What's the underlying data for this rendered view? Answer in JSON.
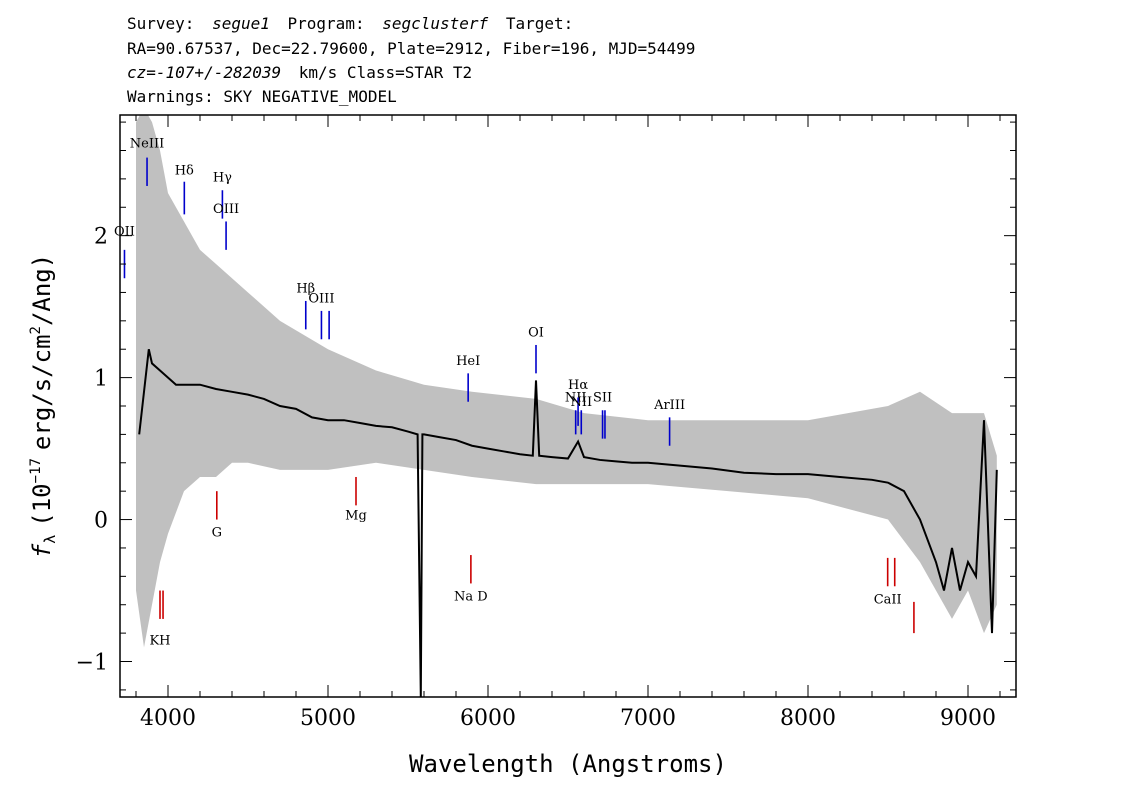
{
  "header": {
    "line1": {
      "survey_label": "Survey:",
      "survey": "segue1",
      "program_label": "Program:",
      "program": "segclusterf",
      "target_label": "Target:"
    },
    "line2": "RA=90.67537, Dec=22.79600, Plate=2912, Fiber=196, MJD=54499",
    "line3": {
      "cz": "cz=-107+/-282039",
      "rest": "km/s Class=STAR T2"
    },
    "line4": "Warnings: SKY NEGATIVE_MODEL"
  },
  "chart_data": {
    "type": "line",
    "xlabel": "Wavelength (Angstroms)",
    "ylabel_prefix": "f",
    "ylabel_sub": "λ",
    "ylabel_open": "(10",
    "ylabel_exp": "−17",
    "ylabel_rest": "erg/s/cm",
    "ylabel_exp2": "2",
    "ylabel_close": "/Ang)",
    "xlim": [
      3700,
      9300
    ],
    "ylim": [
      -1.25,
      2.85
    ],
    "x_ticks": [
      4000,
      5000,
      6000,
      7000,
      8000,
      9000
    ],
    "x_tick_labels": [
      "4000",
      "5000",
      "6000",
      "7000",
      "8000",
      "9000"
    ],
    "y_ticks": [
      -1,
      0,
      1,
      2
    ],
    "y_tick_labels": [
      "−1",
      "0",
      "1",
      "2"
    ],
    "x_minor_step": 200,
    "y_minor_step": 0.2,
    "series": [
      {
        "role": "error",
        "color": "#c0c0c0",
        "x": [
          3800,
          3850,
          3900,
          3950,
          4000,
          4100,
          4200,
          4300,
          4400,
          4500,
          4700,
          5000,
          5300,
          5600,
          5900,
          6300,
          6600,
          7000,
          7500,
          8000,
          8500,
          8700,
          8900,
          9000,
          9100,
          9180
        ],
        "lo": [
          -0.5,
          -0.9,
          -0.6,
          -0.3,
          -0.1,
          0.2,
          0.3,
          0.3,
          0.4,
          0.4,
          0.35,
          0.35,
          0.4,
          0.35,
          0.3,
          0.25,
          0.25,
          0.25,
          0.2,
          0.15,
          0.0,
          -0.3,
          -0.7,
          -0.5,
          -0.8,
          -0.6
        ],
        "hi": [
          2.8,
          2.9,
          2.8,
          2.6,
          2.3,
          2.1,
          1.9,
          1.8,
          1.7,
          1.6,
          1.4,
          1.2,
          1.05,
          0.95,
          0.9,
          0.85,
          0.75,
          0.7,
          0.7,
          0.7,
          0.8,
          0.9,
          0.75,
          0.75,
          0.75,
          0.45
        ]
      },
      {
        "role": "flux",
        "color": "#000000",
        "x": [
          3820,
          3850,
          3880,
          3900,
          3950,
          4000,
          4050,
          4100,
          4200,
          4300,
          4400,
          4500,
          4600,
          4700,
          4800,
          4900,
          5000,
          5100,
          5200,
          5300,
          5400,
          5500,
          5560,
          5580,
          5590,
          5600,
          5700,
          5800,
          5900,
          6000,
          6100,
          6200,
          6280,
          6300,
          6320,
          6400,
          6500,
          6563,
          6600,
          6700,
          6800,
          6900,
          7000,
          7200,
          7400,
          7600,
          7800,
          8000,
          8200,
          8400,
          8500,
          8600,
          8700,
          8800,
          8850,
          8900,
          8950,
          9000,
          9050,
          9100,
          9150,
          9180
        ],
        "y": [
          0.6,
          0.9,
          1.2,
          1.1,
          1.05,
          1.0,
          0.95,
          0.95,
          0.95,
          0.92,
          0.9,
          0.88,
          0.85,
          0.8,
          0.78,
          0.72,
          0.7,
          0.7,
          0.68,
          0.66,
          0.65,
          0.62,
          0.6,
          -1.25,
          0.6,
          0.6,
          0.58,
          0.56,
          0.52,
          0.5,
          0.48,
          0.46,
          0.45,
          0.98,
          0.45,
          0.44,
          0.43,
          0.55,
          0.44,
          0.42,
          0.41,
          0.4,
          0.4,
          0.38,
          0.36,
          0.33,
          0.32,
          0.32,
          0.3,
          0.28,
          0.26,
          0.2,
          0.0,
          -0.3,
          -0.5,
          -0.2,
          -0.5,
          -0.3,
          -0.4,
          0.7,
          -0.8,
          0.35
        ]
      }
    ],
    "emission_lines": [
      {
        "label": "OII",
        "wavelength": 3728,
        "y0": 1.7,
        "y1": 1.9,
        "label_y": 2.0
      },
      {
        "label": "NeIII",
        "wavelength": 3869,
        "y0": 2.35,
        "y1": 2.55,
        "label_y": 2.62
      },
      {
        "label": "Hδ",
        "wavelength": 4102,
        "y0": 2.15,
        "y1": 2.38,
        "label_y": 2.43
      },
      {
        "label": "Hγ",
        "wavelength": 4340,
        "y0": 2.12,
        "y1": 2.32,
        "label_y": 2.38
      },
      {
        "label": "OIII",
        "wavelength": 4363,
        "y0": 1.9,
        "y1": 2.1,
        "label_y": 2.16
      },
      {
        "label": "Hβ",
        "wavelength": 4861,
        "y0": 1.34,
        "y1": 1.54,
        "label_y": 1.6
      },
      {
        "label": "OIII",
        "wavelength": 4959,
        "y0": 1.27,
        "y1": 1.47,
        "label_y": 1.53
      },
      {
        "label": "",
        "wavelength": 5007,
        "y0": 1.27,
        "y1": 1.47,
        "label_y": 1.53
      },
      {
        "label": "HeI",
        "wavelength": 5876,
        "y0": 0.83,
        "y1": 1.03,
        "label_y": 1.09
      },
      {
        "label": "OI",
        "wavelength": 6300,
        "y0": 1.03,
        "y1": 1.23,
        "label_y": 1.29
      },
      {
        "label": "NII",
        "wavelength": 6548,
        "y0": 0.6,
        "y1": 0.77,
        "label_y": 0.83
      },
      {
        "label": "Hα",
        "wavelength": 6563,
        "y0": 0.66,
        "y1": 0.86,
        "label_y": 0.92
      },
      {
        "label": "NII",
        "wavelength": 6583,
        "y0": 0.6,
        "y1": 0.77,
        "label_y": 0.8
      },
      {
        "label": "SII",
        "wavelength": 6716,
        "y0": 0.57,
        "y1": 0.77,
        "label_y": 0.83
      },
      {
        "label": "",
        "wavelength": 6731,
        "y0": 0.57,
        "y1": 0.77,
        "label_y": 0.83
      },
      {
        "label": "ArIII",
        "wavelength": 7135,
        "y0": 0.52,
        "y1": 0.72,
        "label_y": 0.78
      }
    ],
    "absorption_lines": [
      {
        "label": "KH",
        "wavelength": 3950,
        "y0": -0.7,
        "y1": -0.5,
        "label_y": -0.88
      },
      {
        "label": "",
        "wavelength": 3969,
        "y0": -0.7,
        "y1": -0.5,
        "label_y": -0.88
      },
      {
        "label": "G",
        "wavelength": 4305,
        "y0": 0.0,
        "y1": 0.2,
        "label_y": -0.12
      },
      {
        "label": "Mg",
        "wavelength": 5175,
        "y0": 0.1,
        "y1": 0.3,
        "label_y": 0.0
      },
      {
        "label": "Na D",
        "wavelength": 5893,
        "y0": -0.45,
        "y1": -0.25,
        "label_y": -0.57
      },
      {
        "label": "CaII",
        "wavelength": 8498,
        "y0": -0.47,
        "y1": -0.27,
        "label_y": -0.59
      },
      {
        "label": "",
        "wavelength": 8542,
        "y0": -0.47,
        "y1": -0.27,
        "label_y": -0.59
      },
      {
        "label": "",
        "wavelength": 8662,
        "y0": -0.8,
        "y1": -0.58,
        "label_y": -0.9
      }
    ],
    "colors": {
      "emission": "#0000cc",
      "absorption": "#cc0000",
      "flux": "#000000",
      "error": "#c0c0c0"
    }
  }
}
